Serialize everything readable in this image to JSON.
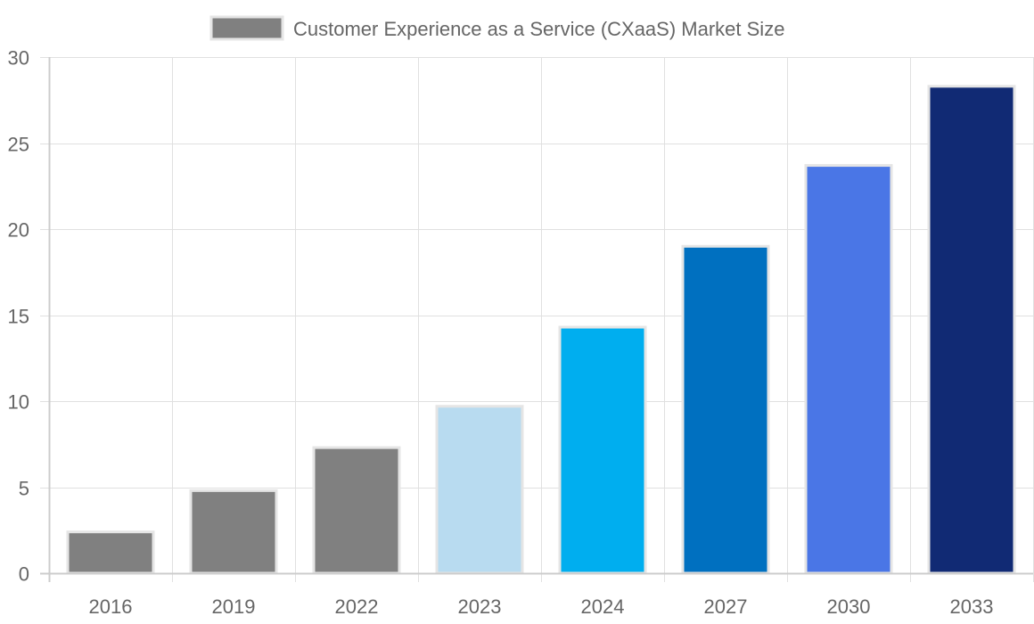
{
  "chart_data": {
    "type": "bar",
    "title": "",
    "legend": {
      "position": "top",
      "entries": [
        {
          "label": "Customer Experience as a Service (CXaaS) Market Size",
          "swatch_color": "#808080"
        }
      ]
    },
    "categories": [
      "2016",
      "2019",
      "2022",
      "2023",
      "2024",
      "2027",
      "2030",
      "2033"
    ],
    "series": [
      {
        "name": "Customer Experience as a Service (CXaaS) Market Size",
        "values": [
          2.4,
          4.8,
          7.3,
          9.7,
          14.3,
          19.0,
          23.7,
          28.3
        ],
        "colors": [
          "#808080",
          "#808080",
          "#808080",
          "#b8dbf0",
          "#00aeef",
          "#0070c0",
          "#4a76e6",
          "#112a74"
        ],
        "border_color": "#e5e5e5"
      }
    ],
    "xlabel": "",
    "ylabel": "",
    "ylim": [
      0,
      30
    ],
    "yticks": [
      0,
      5,
      10,
      15,
      20,
      25,
      30
    ],
    "grid": true
  },
  "colors": {
    "text": "#666666",
    "grid": "#e0e0e0",
    "axis": "#cccccc"
  }
}
